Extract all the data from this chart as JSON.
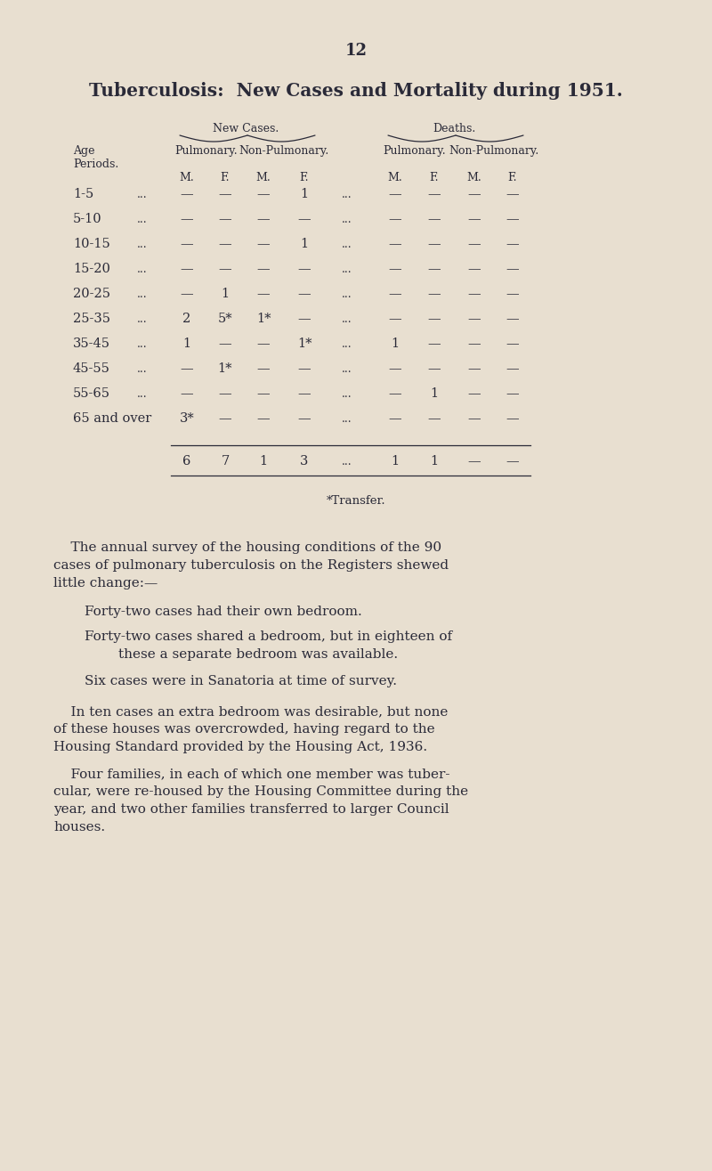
{
  "page_number": "12",
  "title": "Tuberculosis:  New Cases and Mortality during 1951.",
  "bg_color": "#e8dfd0",
  "text_color": "#2a2a38",
  "new_cases_label": "New Cases.",
  "deaths_label": "Deaths.",
  "age_rows": [
    {
      "age": "1-5",
      "dots": "...",
      "nc_pul_m": "—",
      "nc_pul_f": "—",
      "nc_npul_m": "—",
      "nc_npul_f": "1",
      "mid_dots": "...",
      "d_pul_m": "—",
      "d_pul_f": "—",
      "d_npul_m": "—",
      "d_npul_f": "—"
    },
    {
      "age": "5-10",
      "dots": "...",
      "nc_pul_m": "—",
      "nc_pul_f": "—",
      "nc_npul_m": "—",
      "nc_npul_f": "—",
      "mid_dots": "...",
      "d_pul_m": "—",
      "d_pul_f": "—",
      "d_npul_m": "—",
      "d_npul_f": "—"
    },
    {
      "age": "10-15",
      "dots": "...",
      "nc_pul_m": "—",
      "nc_pul_f": "—",
      "nc_npul_m": "—",
      "nc_npul_f": "1",
      "mid_dots": "...",
      "d_pul_m": "—",
      "d_pul_f": "—",
      "d_npul_m": "—",
      "d_npul_f": "—"
    },
    {
      "age": "15-20",
      "dots": "...",
      "nc_pul_m": "—",
      "nc_pul_f": "—",
      "nc_npul_m": "—",
      "nc_npul_f": "—",
      "mid_dots": "...",
      "d_pul_m": "—",
      "d_pul_f": "—",
      "d_npul_m": "—",
      "d_npul_f": "—"
    },
    {
      "age": "20-25",
      "dots": "...",
      "nc_pul_m": "—",
      "nc_pul_f": "1",
      "nc_npul_m": "—",
      "nc_npul_f": "—",
      "mid_dots": "...",
      "d_pul_m": "—",
      "d_pul_f": "—",
      "d_npul_m": "—",
      "d_npul_f": "—"
    },
    {
      "age": "25-35",
      "dots": "...",
      "nc_pul_m": "2",
      "nc_pul_f": "5*",
      "nc_npul_m": "1*",
      "nc_npul_f": "—",
      "mid_dots": "...",
      "d_pul_m": "—",
      "d_pul_f": "—",
      "d_npul_m": "—",
      "d_npul_f": "—"
    },
    {
      "age": "35-45",
      "dots": "...",
      "nc_pul_m": "1",
      "nc_pul_f": "—",
      "nc_npul_m": "—",
      "nc_npul_f": "1*",
      "mid_dots": "...",
      "d_pul_m": "1",
      "d_pul_f": "—",
      "d_npul_m": "—",
      "d_npul_f": "—"
    },
    {
      "age": "45-55",
      "dots": "...",
      "nc_pul_m": "—",
      "nc_pul_f": "1*",
      "nc_npul_m": "—",
      "nc_npul_f": "—",
      "mid_dots": "...",
      "d_pul_m": "—",
      "d_pul_f": "—",
      "d_npul_m": "—",
      "d_npul_f": "—"
    },
    {
      "age": "55-65",
      "dots": "...",
      "nc_pul_m": "—",
      "nc_pul_f": "—",
      "nc_npul_m": "—",
      "nc_npul_f": "—",
      "mid_dots": "...",
      "d_pul_m": "—",
      "d_pul_f": "1",
      "d_npul_m": "—",
      "d_npul_f": "—"
    },
    {
      "age": "65 and over",
      "dots": "",
      "nc_pul_m": "3*",
      "nc_pul_f": "—",
      "nc_npul_m": "—",
      "nc_npul_f": "—",
      "mid_dots": "...",
      "d_pul_m": "—",
      "d_pul_f": "—",
      "d_npul_m": "—",
      "d_npul_f": "—"
    }
  ],
  "totals": {
    "nc_pul_m": "6",
    "nc_pul_f": "7",
    "nc_npul_m": "1",
    "nc_npul_f": "3",
    "mid_dots": "...",
    "d_pul_m": "1",
    "d_pul_f": "1",
    "d_npul_m": "—",
    "d_npul_f": "—"
  },
  "transfer_note": "*Transfer.",
  "para1_indent": "    The annual survey of the housing conditions of the 90",
  "para1_line2": "cases of pulmonary tuberculosis on the Registers shewed",
  "para1_line3": "little change:—",
  "bullet1": "Forty-two cases had their own bedroom.",
  "bullet2_line1": "Forty-two cases shared a bedroom, but in eighteen of",
  "bullet2_line2": "these a separate bedroom was available.",
  "bullet3": "Six cases were in Sanatoria at time of survey.",
  "para2_indent": "    In ten cases an extra bedroom was desirable, but none",
  "para2_line2": "of these houses was overcrowded, having regard to the",
  "para2_line3": "Housing Standard provided by the Housing Act, 1936.",
  "para3_indent": "    Four families, in each of which one member was tuber-",
  "para3_line2": "cular, were re-housed by the Housing Committee during the",
  "para3_line3": "year, and two other families transferred to larger Council",
  "para3_line4": "houses."
}
